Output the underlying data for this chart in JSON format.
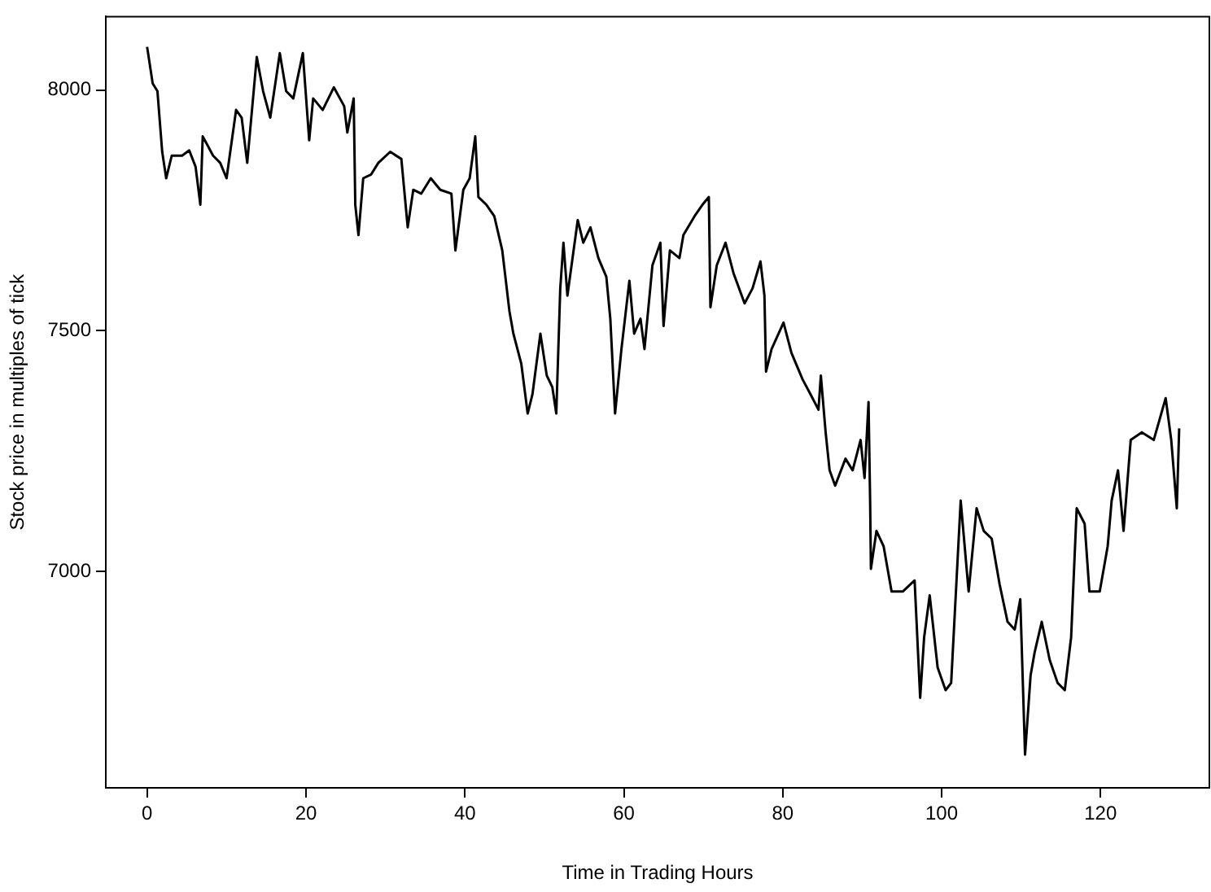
{
  "chart_data": {
    "type": "line",
    "xlabel": "Time in Trading Hours",
    "ylabel": "Stock price in multiples of tick",
    "xlim": [
      -5.2,
      133.7
    ],
    "ylim": [
      6550,
      8153
    ],
    "xticks": [
      0,
      20,
      40,
      60,
      80,
      100,
      120
    ],
    "yticks": [
      7000,
      7500,
      8000
    ],
    "grid": false,
    "legend": false,
    "marker": "none",
    "line_style": "solid",
    "x": [
      0,
      0.7,
      1.3,
      1.9,
      2.4,
      3.1,
      4.4,
      5.3,
      6.1,
      6.7,
      7.0,
      8.3,
      9.2,
      10.0,
      11.2,
      11.9,
      12.6,
      13.8,
      14.6,
      15.5,
      16.7,
      17.5,
      18.4,
      19.6,
      20.4,
      20.9,
      22.1,
      23.5,
      24.8,
      25.2,
      26.0,
      26.2,
      26.6,
      27.2,
      28.2,
      29.1,
      30.6,
      32.0,
      32.8,
      33.5,
      34.5,
      35.7,
      36.9,
      38.3,
      38.8,
      39.8,
      40.6,
      41.3,
      41.7,
      42.7,
      43.7,
      44.7,
      45.6,
      46.1,
      47.1,
      47.9,
      48.5,
      49.5,
      50.3,
      51.0,
      51.5,
      52.0,
      52.4,
      52.9,
      54.2,
      54.9,
      55.8,
      56.8,
      57.8,
      58.3,
      58.9,
      59.7,
      60.7,
      61.3,
      62.1,
      62.6,
      63.6,
      64.6,
      65.0,
      65.8,
      67.0,
      67.5,
      68.9,
      69.9,
      70.7,
      70.9,
      71.7,
      72.8,
      73.8,
      75.2,
      76.2,
      77.2,
      77.7,
      77.9,
      78.6,
      80.1,
      81.1,
      82.5,
      83.5,
      84.5,
      84.8,
      85.4,
      85.9,
      86.6,
      87.9,
      88.8,
      89.8,
      90.3,
      90.8,
      91.0,
      91.1,
      91.8,
      92.7,
      93.7,
      95.1,
      96.6,
      97.3,
      97.8,
      98.5,
      99.5,
      100.5,
      101.2,
      101.9,
      102.4,
      103.4,
      104.4,
      105.3,
      106.3,
      107.3,
      108.3,
      109.2,
      109.9,
      110.5,
      111.2,
      111.7,
      112.6,
      113.6,
      114.6,
      115.5,
      116.3,
      117.0,
      118.0,
      118.6,
      119.9,
      120.9,
      121.4,
      122.2,
      122.9,
      123.8,
      125.2,
      126.7,
      128.2,
      128.9,
      129.6,
      129.9
    ],
    "series": [
      {
        "color": "#000000",
        "values": [
          8090,
          8014,
          7998,
          7872,
          7817,
          7864,
          7864,
          7875,
          7841,
          7762,
          7904,
          7864,
          7849,
          7817,
          7959,
          7943,
          7849,
          8069,
          7998,
          7943,
          8077,
          7998,
          7983,
          8077,
          7896,
          7983,
          7959,
          8006,
          7967,
          7912,
          7983,
          7762,
          7699,
          7817,
          7825,
          7849,
          7872,
          7857,
          7715,
          7793,
          7785,
          7817,
          7793,
          7785,
          7667,
          7793,
          7817,
          7904,
          7778,
          7762,
          7738,
          7667,
          7541,
          7494,
          7431,
          7328,
          7368,
          7494,
          7407,
          7383,
          7328,
          7588,
          7683,
          7573,
          7730,
          7683,
          7715,
          7651,
          7612,
          7525,
          7328,
          7462,
          7604,
          7494,
          7525,
          7462,
          7636,
          7683,
          7510,
          7667,
          7651,
          7699,
          7738,
          7762,
          7778,
          7549,
          7636,
          7683,
          7620,
          7557,
          7588,
          7644,
          7573,
          7415,
          7462,
          7517,
          7454,
          7399,
          7368,
          7336,
          7407,
          7289,
          7210,
          7178,
          7234,
          7210,
          7273,
          7194,
          7352,
          7147,
          7005,
          7084,
          7052,
          6958,
          6958,
          6981,
          6737,
          6863,
          6950,
          6800,
          6753,
          6768,
          6989,
          7147,
          6958,
          7131,
          7084,
          7068,
          6973,
          6895,
          6879,
          6942,
          6619,
          6784,
          6831,
          6895,
          6816,
          6768,
          6753,
          6863,
          7131,
          7099,
          6958,
          6958,
          7052,
          7147,
          7210,
          7084,
          7273,
          7289,
          7273,
          7360,
          7273,
          7131,
          7297
        ]
      }
    ]
  }
}
